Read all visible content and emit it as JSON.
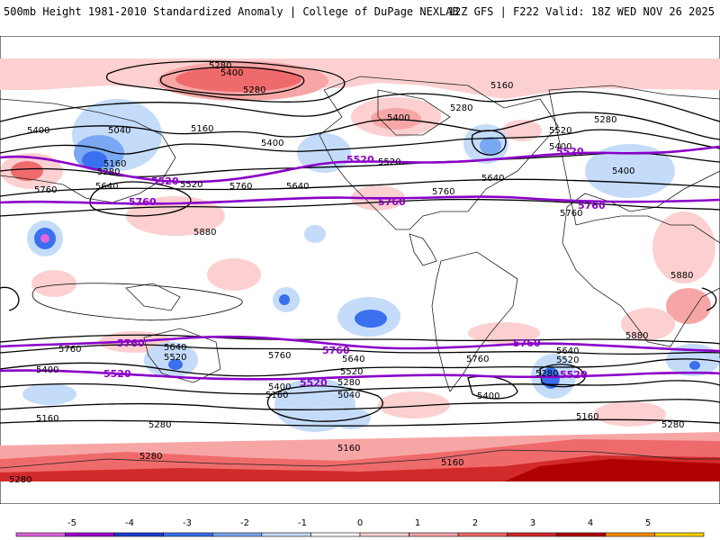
{
  "header": {
    "title_left": "500mb Height 1981-2010 Standardized Anomaly | College of DuPage NEXLAB",
    "title_right": "12Z GFS | F222 Valid: 18Z WED NOV 26 2025"
  },
  "map": {
    "contour_labels": [
      "5280",
      "5400",
      "5160",
      "5040",
      "5520",
      "5640",
      "5760",
      "5880"
    ],
    "highlight_labels": [
      "5520",
      "5760"
    ],
    "colors": {
      "contour": "#000000",
      "highlight": "#8a00c8",
      "coast": "#222222"
    }
  },
  "colorbar": {
    "ticks": [
      "-5",
      "-4",
      "-3",
      "-2",
      "-1",
      "0",
      "1",
      "2",
      "3",
      "4",
      "5"
    ],
    "colors": [
      "#e066e0",
      "#9b00cc",
      "#1a3fcf",
      "#3a70ee",
      "#7aa8f3",
      "#c4dcfa",
      "#ffffff",
      "#fcd0d0",
      "#f7a6a6",
      "#ef6b6b",
      "#d22a2a",
      "#b00000",
      "#ff9000",
      "#ffd000"
    ]
  }
}
